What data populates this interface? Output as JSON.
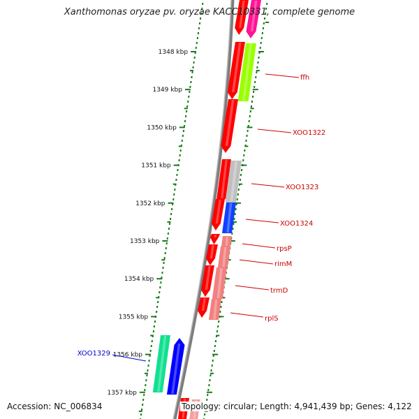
{
  "title": "Xanthomonas oryzae pv. oryzae KACC10331, complete genome",
  "footer": {
    "accession": "Accession: NC_006834",
    "topology": "Topology: circular; Length: 4,941,439 bp; Genes: 4,122"
  },
  "colors": {
    "backbone": "#8a8a8a",
    "ruler_tick": "#1a7a1a",
    "gene_label": "#cc0000",
    "external_label": "#0000cc",
    "cds": "#ff0000"
  },
  "ruler": {
    "ticks": [
      {
        "kbp": 1348,
        "label": "1348 kbp"
      },
      {
        "kbp": 1349,
        "label": "1349 kbp"
      },
      {
        "kbp": 1350,
        "label": "1350 kbp"
      },
      {
        "kbp": 1351,
        "label": "1351 kbp"
      },
      {
        "kbp": 1352,
        "label": "1352 kbp"
      },
      {
        "kbp": 1353,
        "label": "1353 kbp"
      },
      {
        "kbp": 1354,
        "label": "1354 kbp"
      },
      {
        "kbp": 1355,
        "label": "1355 kbp"
      },
      {
        "kbp": 1356,
        "label": "1356 kbp"
      },
      {
        "kbp": 1357,
        "label": "1357 kbp"
      }
    ]
  },
  "genes": [
    {
      "label": "ffh",
      "color": "#cc0000"
    },
    {
      "label": "XOO1322",
      "color": "#cc0000"
    },
    {
      "label": "XOO1323",
      "color": "#cc0000"
    },
    {
      "label": "XOO1324",
      "color": "#cc0000"
    },
    {
      "label": "rpsP",
      "color": "#cc0000"
    },
    {
      "label": "rimM",
      "color": "#cc0000"
    },
    {
      "label": "trmD",
      "color": "#cc0000"
    },
    {
      "label": "rplS",
      "color": "#cc0000"
    },
    {
      "label": "XOO1329",
      "color": "#0000cc"
    }
  ]
}
